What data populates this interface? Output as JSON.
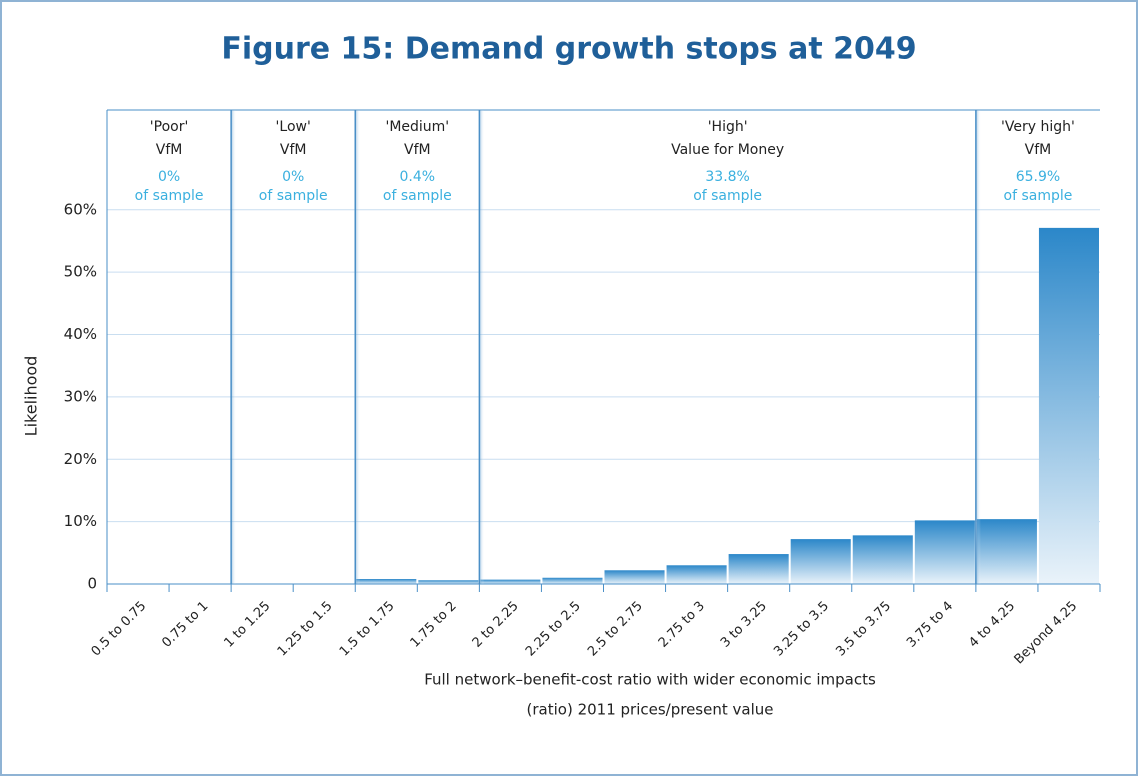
{
  "chart_data": {
    "type": "bar",
    "title": "Figure 15: Demand growth stops at 2049",
    "y_label": "Likelihood",
    "x_label": [
      "Full network–benefit-cost ratio with wider economic impacts",
      "(ratio) 2011 prices/present value"
    ],
    "categories": [
      "0.5 to 0.75",
      "0.75 to 1",
      "1 to 1.25",
      "1.25 to 1.5",
      "1.5 to 1.75",
      "1.75 to 2",
      "2 to 2.25",
      "2.25 to 2.5",
      "2.5 to 2.75",
      "2.75 to 3",
      "3 to 3.25",
      "3.25 to 3.5",
      "3.5 to 3.75",
      "3.75 to 4",
      "4 to 4.25",
      "Beyond 4.25"
    ],
    "values": [
      0,
      0,
      0,
      0,
      0.8,
      0.6,
      0.7,
      1.0,
      2.2,
      3.0,
      4.8,
      7.2,
      7.8,
      10.2,
      10.4,
      57.1
    ],
    "color": "#2b87c9",
    "ylim": [
      0,
      76
    ],
    "yticks": [
      0,
      {
        "value": 10,
        "label": "10%"
      },
      {
        "value": 20,
        "label": "20%"
      },
      {
        "value": 30,
        "label": "30%"
      },
      {
        "value": 40,
        "label": "40%"
      },
      {
        "value": 50,
        "label": "50%"
      },
      {
        "value": 60,
        "label": "60%"
      }
    ],
    "grid": true,
    "regions": [
      {
        "label": [
          "'Poor'",
          "VfM"
        ],
        "share": [
          "0%",
          "of sample"
        ]
      },
      {
        "label": [
          "'Low'",
          "VfM"
        ],
        "share": [
          "0%",
          "of sample"
        ]
      },
      {
        "label": [
          "'Medium'",
          "VfM"
        ],
        "share": [
          "0.4%",
          "of sample"
        ]
      },
      {
        "label": [
          "'High'",
          "Value for Money"
        ],
        "share": [
          "33.8%",
          "of sample"
        ]
      },
      {
        "label": [
          "'Very high'",
          "VfM"
        ],
        "share": [
          "65.9%",
          "of sample"
        ]
      }
    ]
  }
}
